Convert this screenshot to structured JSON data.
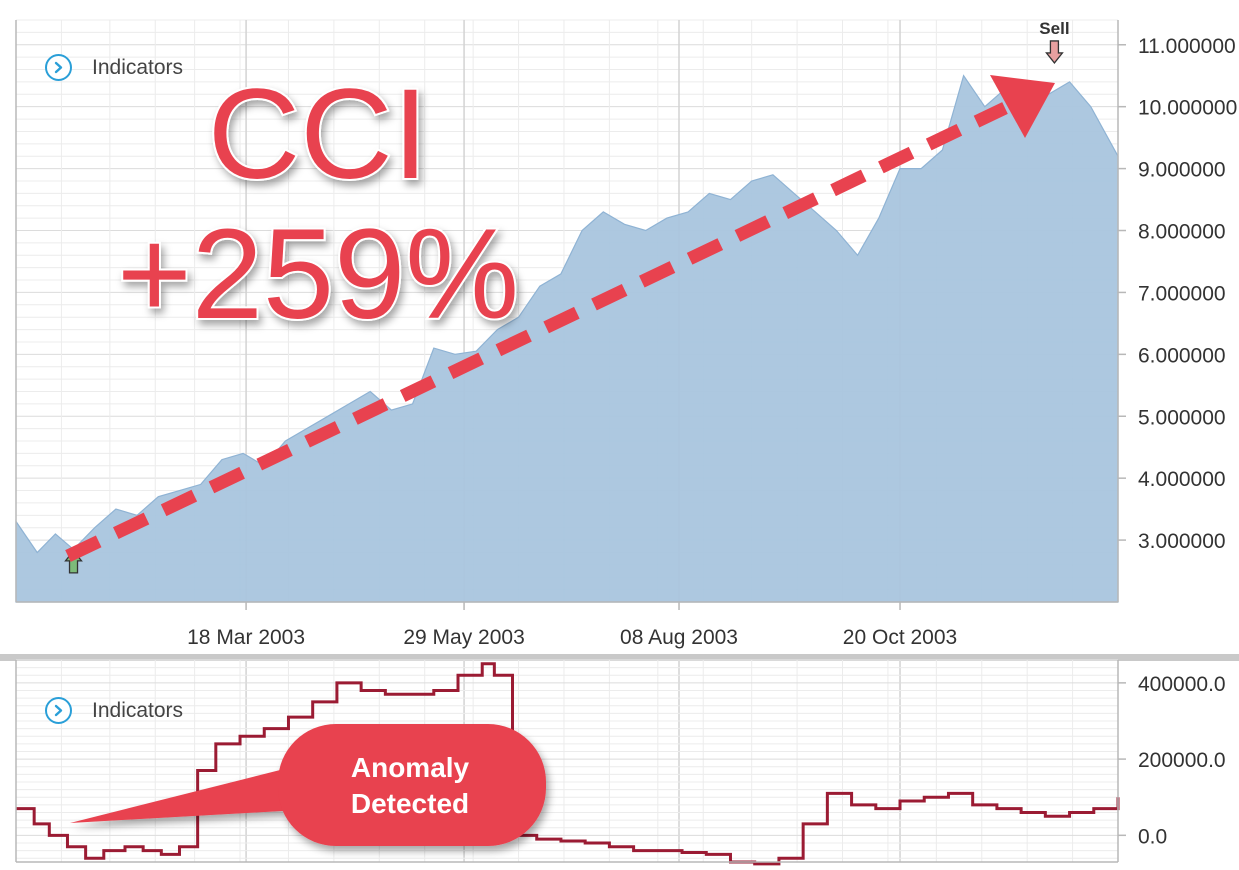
{
  "top_panel": {
    "indicators_label": "Indicators",
    "y_ticks": [
      "11.000000",
      "10.000000",
      "9.000000",
      "8.000000",
      "7.000000",
      "6.000000",
      "5.000000",
      "4.000000",
      "3.000000"
    ],
    "x_ticks": [
      "18 Mar 2003",
      "29 May 2003",
      "08 Aug 2003",
      "20 Oct 2003"
    ],
    "sell_label": "Sell"
  },
  "bottom_panel": {
    "indicators_label": "Indicators",
    "y_ticks": [
      "400000.0",
      "200000.0",
      "0.0"
    ]
  },
  "overlay": {
    "title": "CCI",
    "gain": "+259%",
    "callout": [
      "Anomaly",
      "Detected"
    ]
  },
  "colors": {
    "area_fill": "#a9c5de",
    "area_line": "#8fb3d4",
    "indicator_line": "#9b1b33",
    "accent_red": "#e8424f",
    "buy_arrow": "#7dbb7a",
    "sell_arrow": "#e8a0a0",
    "icon_blue": "#2a9fd8"
  },
  "chart_data": [
    {
      "type": "area",
      "x_start": "2003-01-01",
      "x_end": "2003-12-31",
      "x_tick_labels": [
        "18 Mar 2003",
        "29 May 2003",
        "08 Aug 2003",
        "20 Oct 2003"
      ],
      "ylim": [
        2.0,
        11.4
      ],
      "x": [
        "2003-01-01",
        "2003-01-08",
        "2003-01-14",
        "2003-01-20",
        "2003-01-27",
        "2003-02-03",
        "2003-02-10",
        "2003-02-17",
        "2003-02-24",
        "2003-03-03",
        "2003-03-10",
        "2003-03-17",
        "2003-03-24",
        "2003-03-31",
        "2003-04-07",
        "2003-04-14",
        "2003-04-21",
        "2003-04-28",
        "2003-05-05",
        "2003-05-12",
        "2003-05-19",
        "2003-05-26",
        "2003-06-02",
        "2003-06-09",
        "2003-06-16",
        "2003-06-23",
        "2003-06-30",
        "2003-07-07",
        "2003-07-14",
        "2003-07-21",
        "2003-07-28",
        "2003-08-04",
        "2003-08-11",
        "2003-08-18",
        "2003-08-25",
        "2003-09-01",
        "2003-09-08",
        "2003-09-15",
        "2003-09-22",
        "2003-09-29",
        "2003-10-06",
        "2003-10-13",
        "2003-10-20",
        "2003-10-27",
        "2003-11-03",
        "2003-11-10",
        "2003-11-17",
        "2003-11-24",
        "2003-12-01",
        "2003-12-08",
        "2003-12-15",
        "2003-12-22",
        "2003-12-31"
      ],
      "values": [
        3.3,
        2.8,
        3.1,
        2.85,
        3.2,
        3.5,
        3.4,
        3.7,
        3.8,
        3.9,
        4.3,
        4.4,
        4.2,
        4.6,
        4.8,
        5.0,
        5.2,
        5.4,
        5.1,
        5.2,
        6.1,
        6.0,
        6.05,
        6.4,
        6.6,
        7.1,
        7.3,
        8.0,
        8.3,
        8.1,
        8.0,
        8.2,
        8.3,
        8.6,
        8.5,
        8.8,
        8.9,
        8.6,
        8.3,
        8.0,
        7.6,
        8.2,
        9.0,
        9.0,
        9.3,
        10.5,
        10.0,
        10.3,
        9.8,
        10.2,
        10.4,
        10.0,
        9.2
      ],
      "markers": [
        {
          "type": "buy",
          "x": "2003-01-20",
          "value": 2.6
        },
        {
          "type": "sell",
          "x": "2003-12-10",
          "label": "Sell",
          "value": 10.9
        }
      ]
    },
    {
      "type": "line",
      "step": true,
      "ylim": [
        -70000,
        460000
      ],
      "x": [
        "2003-01-01",
        "2003-01-07",
        "2003-01-12",
        "2003-01-18",
        "2003-01-24",
        "2003-01-30",
        "2003-02-06",
        "2003-02-12",
        "2003-02-18",
        "2003-02-24",
        "2003-03-02",
        "2003-03-08",
        "2003-03-16",
        "2003-03-24",
        "2003-04-01",
        "2003-04-09",
        "2003-04-17",
        "2003-04-25",
        "2003-05-03",
        "2003-05-11",
        "2003-05-19",
        "2003-05-27",
        "2003-06-04",
        "2003-06-08",
        "2003-06-14",
        "2003-06-22",
        "2003-06-30",
        "2003-07-08",
        "2003-07-16",
        "2003-07-24",
        "2003-08-01",
        "2003-08-09",
        "2003-08-17",
        "2003-08-25",
        "2003-09-02",
        "2003-09-10",
        "2003-09-18",
        "2003-09-26",
        "2003-10-04",
        "2003-10-12",
        "2003-10-20",
        "2003-10-28",
        "2003-11-05",
        "2003-11-13",
        "2003-11-21",
        "2003-11-29",
        "2003-12-07",
        "2003-12-15",
        "2003-12-23",
        "2003-12-31"
      ],
      "values": [
        70000,
        30000,
        0,
        -30000,
        -60000,
        -40000,
        -30000,
        -40000,
        -50000,
        -30000,
        170000,
        240000,
        260000,
        280000,
        310000,
        350000,
        400000,
        380000,
        370000,
        370000,
        380000,
        420000,
        450000,
        420000,
        0,
        -10000,
        -15000,
        -20000,
        -30000,
        -40000,
        -40000,
        -45000,
        -50000,
        -70000,
        -75000,
        -60000,
        30000,
        110000,
        80000,
        70000,
        90000,
        100000,
        110000,
        80000,
        70000,
        60000,
        50000,
        60000,
        70000,
        100000
      ]
    }
  ]
}
